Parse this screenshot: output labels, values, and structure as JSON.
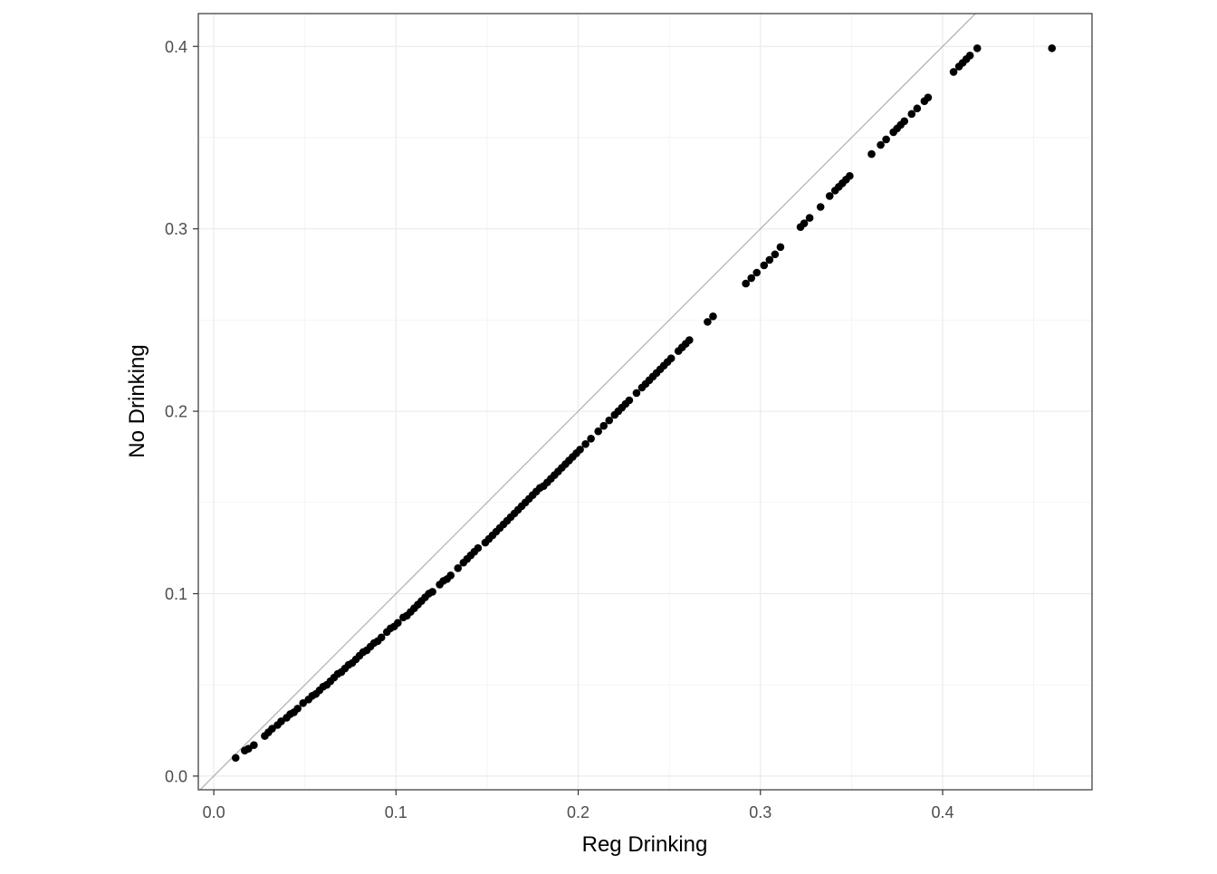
{
  "chart_data": {
    "type": "scatter",
    "title": "",
    "xlabel": "Reg Drinking",
    "ylabel": "No Drinking",
    "xlim": [
      -0.0085,
      0.482
    ],
    "ylim": [
      -0.0075,
      0.418
    ],
    "x_ticks": [
      0.0,
      0.1,
      0.2,
      0.3,
      0.4
    ],
    "y_ticks": [
      0.0,
      0.1,
      0.2,
      0.3,
      0.4
    ],
    "x_tick_labels": [
      "0.0",
      "0.1",
      "0.2",
      "0.3",
      "0.4"
    ],
    "y_tick_labels": [
      "0.0",
      "0.1",
      "0.2",
      "0.3",
      "0.4"
    ],
    "grid": true,
    "reference_line": {
      "type": "identity",
      "slope": 1,
      "intercept": 0,
      "color": "#b3b3b3"
    },
    "point_color": "#000000",
    "legend": "none",
    "series": [
      {
        "x": [
          0.012,
          0.017,
          0.019,
          0.022,
          0.028,
          0.03,
          0.032,
          0.035,
          0.037,
          0.04,
          0.042,
          0.044,
          0.046,
          0.049,
          0.052,
          0.054,
          0.056,
          0.058,
          0.06,
          0.062,
          0.064,
          0.066,
          0.068,
          0.07,
          0.072,
          0.074,
          0.076,
          0.078,
          0.08,
          0.082,
          0.084,
          0.086,
          0.088,
          0.09,
          0.092,
          0.095,
          0.097,
          0.099,
          0.101,
          0.104,
          0.106,
          0.108,
          0.11,
          0.112,
          0.114,
          0.116,
          0.118,
          0.12,
          0.124,
          0.126,
          0.128,
          0.13,
          0.134,
          0.137,
          0.139,
          0.141,
          0.143,
          0.145,
          0.149,
          0.151,
          0.153,
          0.155,
          0.157,
          0.159,
          0.161,
          0.163,
          0.165,
          0.167,
          0.169,
          0.171,
          0.173,
          0.175,
          0.177,
          0.179,
          0.181,
          0.183,
          0.185,
          0.187,
          0.189,
          0.191,
          0.193,
          0.195,
          0.197,
          0.199,
          0.201,
          0.204,
          0.207,
          0.211,
          0.214,
          0.217,
          0.22,
          0.222,
          0.224,
          0.226,
          0.228,
          0.232,
          0.235,
          0.237,
          0.239,
          0.241,
          0.243,
          0.245,
          0.247,
          0.249,
          0.251,
          0.255,
          0.257,
          0.259,
          0.261,
          0.271,
          0.274,
          0.292,
          0.295,
          0.298,
          0.302,
          0.305,
          0.308,
          0.311,
          0.322,
          0.324,
          0.327,
          0.333,
          0.338,
          0.341,
          0.343,
          0.345,
          0.347,
          0.349,
          0.361,
          0.366,
          0.369,
          0.373,
          0.375,
          0.377,
          0.379,
          0.383,
          0.386,
          0.39,
          0.392,
          0.406,
          0.409,
          0.411,
          0.413,
          0.415,
          0.419,
          0.46
        ],
        "y": [
          0.01,
          0.014,
          0.015,
          0.017,
          0.022,
          0.024,
          0.026,
          0.028,
          0.03,
          0.032,
          0.034,
          0.035,
          0.037,
          0.04,
          0.042,
          0.044,
          0.045,
          0.047,
          0.049,
          0.05,
          0.052,
          0.054,
          0.056,
          0.057,
          0.059,
          0.061,
          0.062,
          0.064,
          0.066,
          0.068,
          0.069,
          0.071,
          0.073,
          0.074,
          0.076,
          0.079,
          0.081,
          0.082,
          0.084,
          0.087,
          0.088,
          0.09,
          0.092,
          0.094,
          0.096,
          0.098,
          0.1,
          0.101,
          0.105,
          0.107,
          0.108,
          0.11,
          0.114,
          0.117,
          0.119,
          0.121,
          0.123,
          0.125,
          0.128,
          0.13,
          0.132,
          0.134,
          0.136,
          0.138,
          0.14,
          0.142,
          0.144,
          0.146,
          0.148,
          0.15,
          0.152,
          0.154,
          0.156,
          0.158,
          0.159,
          0.161,
          0.163,
          0.165,
          0.167,
          0.169,
          0.171,
          0.173,
          0.175,
          0.177,
          0.179,
          0.182,
          0.185,
          0.189,
          0.192,
          0.195,
          0.198,
          0.2,
          0.202,
          0.204,
          0.206,
          0.21,
          0.213,
          0.215,
          0.217,
          0.219,
          0.221,
          0.223,
          0.225,
          0.227,
          0.229,
          0.233,
          0.235,
          0.237,
          0.239,
          0.249,
          0.252,
          0.27,
          0.273,
          0.276,
          0.28,
          0.283,
          0.286,
          0.29,
          0.301,
          0.303,
          0.306,
          0.312,
          0.318,
          0.321,
          0.323,
          0.325,
          0.327,
          0.329,
          0.341,
          0.346,
          0.349,
          0.353,
          0.355,
          0.357,
          0.359,
          0.363,
          0.366,
          0.37,
          0.372,
          0.386,
          0.389,
          0.391,
          0.393,
          0.395,
          0.399,
          0.399
        ]
      }
    ]
  }
}
